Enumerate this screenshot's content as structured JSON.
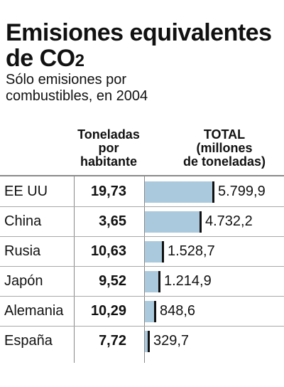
{
  "chart_data": {
    "type": "bar",
    "title_main": "Emisiones equivalentes de CO",
    "title_subscript": "2",
    "subtitle_line1": "Sólo emisiones por",
    "subtitle_line2": "combustibles, en 2004",
    "col_per_capita": [
      "Toneladas",
      "por",
      "habitante"
    ],
    "col_total": [
      "TOTAL",
      "(millones",
      "de toneladas)"
    ],
    "categories": [
      "EE UU",
      "China",
      "Rusia",
      "Japón",
      "Alemania",
      "España"
    ],
    "per_capita": [
      "19,73",
      "3,65",
      "10,63",
      "9,52",
      "10,29",
      "7,72"
    ],
    "totals_label": [
      "5.799,9",
      "4.732,2",
      "1.528,7",
      "1.214,9",
      "848,6",
      "329,7"
    ],
    "values": [
      5799.9,
      4732.2,
      1528.7,
      1214.9,
      848.6,
      329.7
    ],
    "bar_color": "#aac9dc",
    "marker_color": "#111111"
  }
}
